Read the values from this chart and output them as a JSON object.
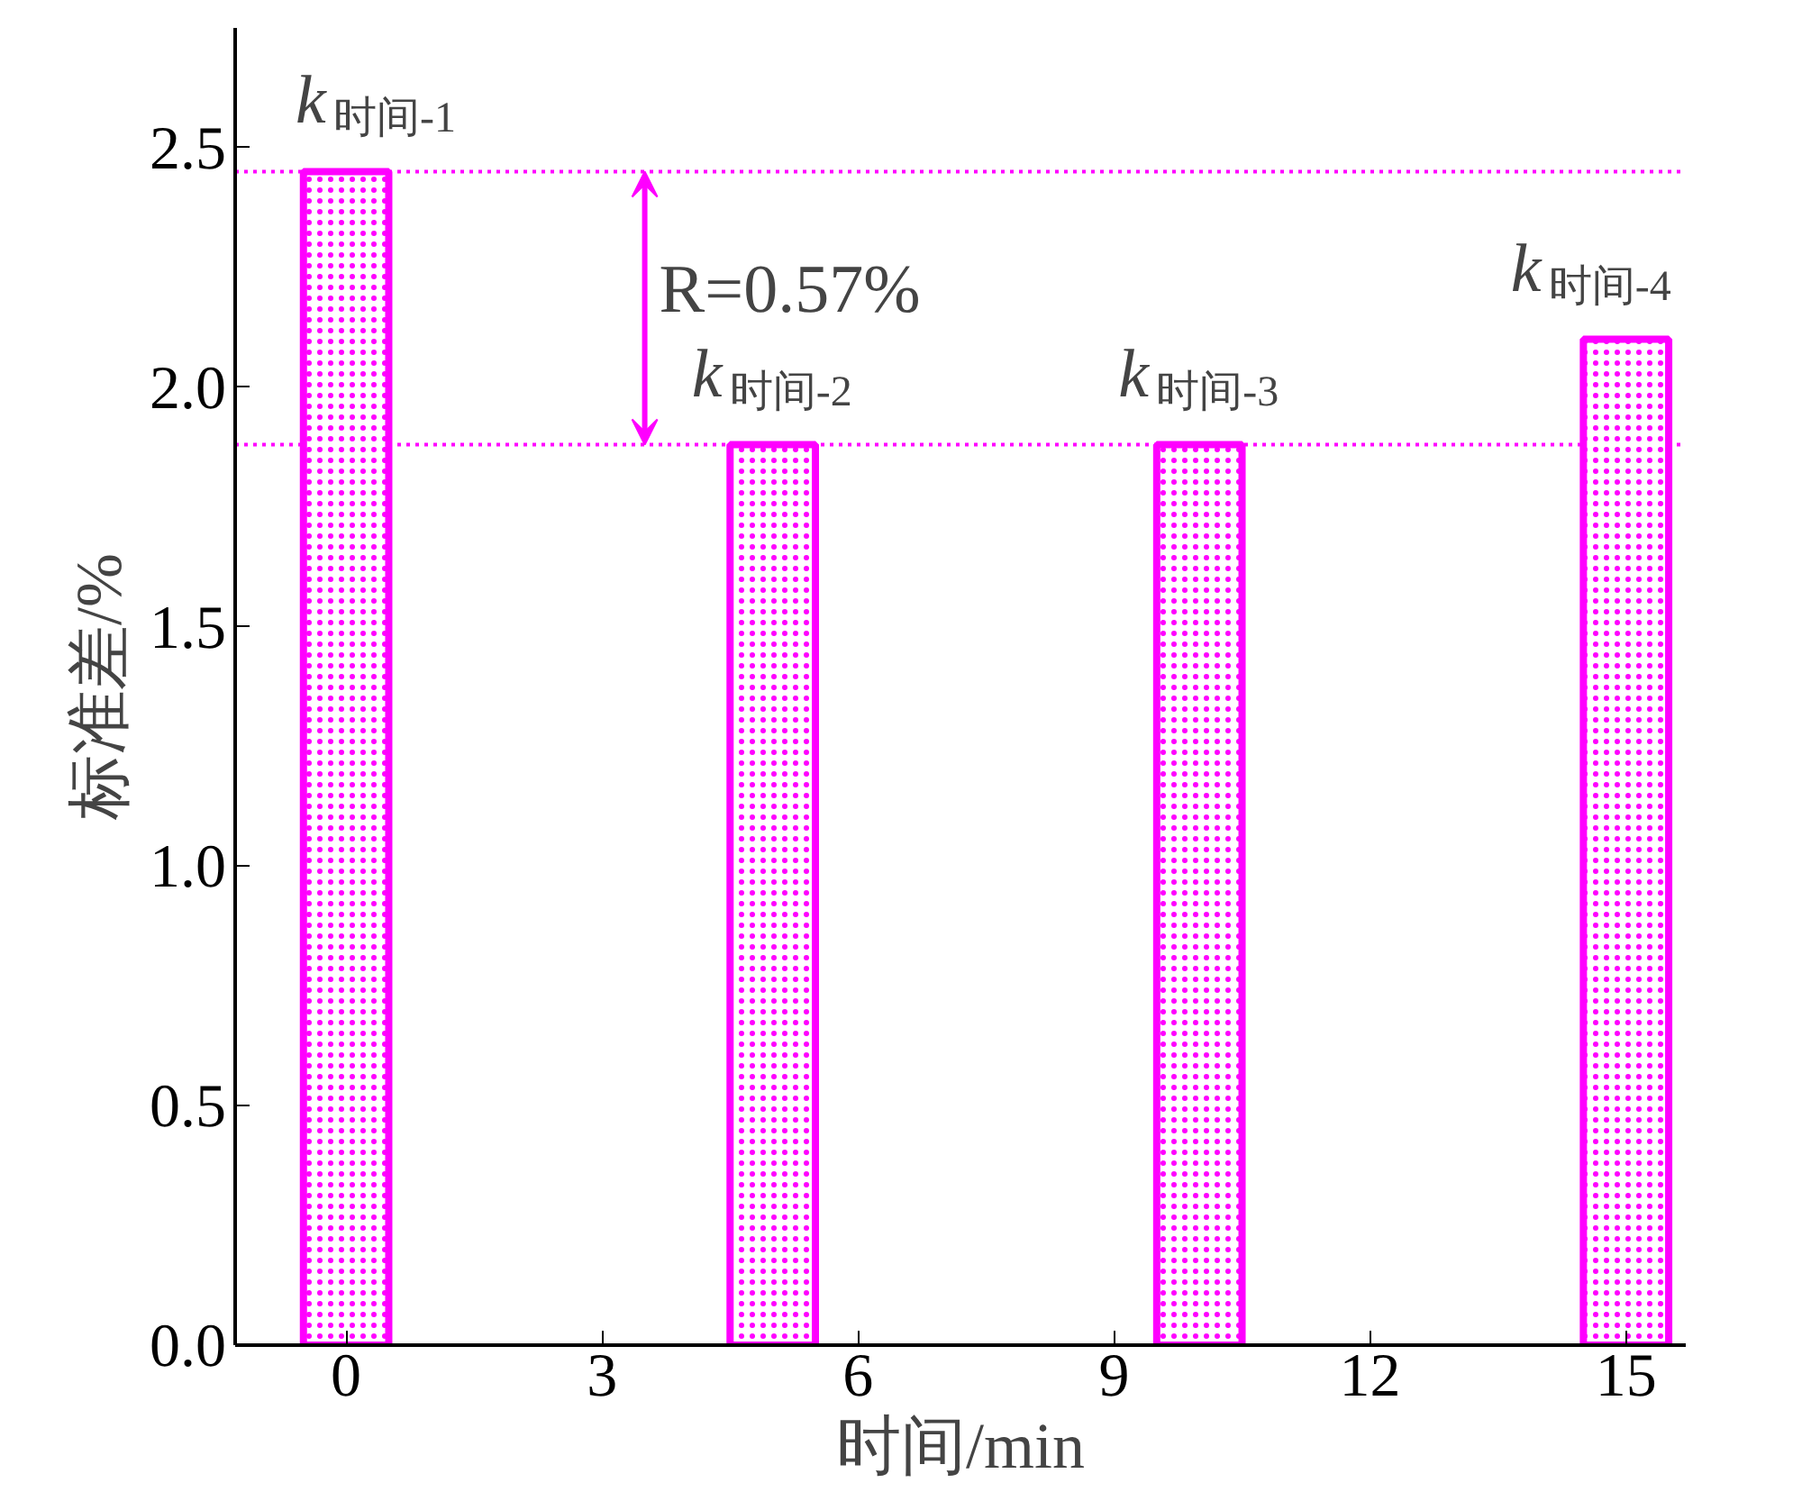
{
  "chart_data": {
    "type": "bar",
    "xlabel": "时间/min",
    "ylabel": "标准差/%",
    "x": [
      0,
      5,
      10,
      15
    ],
    "values": [
      2.45,
      1.88,
      1.88,
      2.1
    ],
    "color": "#ff00ff",
    "xlim": [
      -1.3,
      15.7
    ],
    "xticks": [
      0,
      3,
      6,
      9,
      12,
      15
    ],
    "ylim": [
      0,
      2.75
    ],
    "yticks": [
      {
        "value": 0,
        "label": "0.0"
      },
      0.5,
      {
        "value": 1,
        "label": "1.0"
      },
      1.5,
      {
        "value": 2,
        "label": "2.0"
      },
      2.5
    ],
    "grid": false,
    "ref_lines": [
      {
        "axis": "y",
        "value": 2.45,
        "color": "#ff00ff",
        "line_style": "dotted"
      },
      {
        "axis": "y",
        "value": 1.88,
        "color": "#ff00ff",
        "line_style": "dotted"
      }
    ],
    "annotations": [
      {
        "text": "k$_{时间-1}$",
        "x": 0,
        "y": 2.45
      },
      {
        "text": "k$_{时间-2}$",
        "x": 5,
        "y": 1.88
      },
      {
        "text": "k$_{时间-3}$",
        "x": 10,
        "y": 1.88
      },
      {
        "text": "k$_{时间-4}$",
        "x": 15,
        "y": 2.1
      },
      "R=0.57%"
    ]
  }
}
